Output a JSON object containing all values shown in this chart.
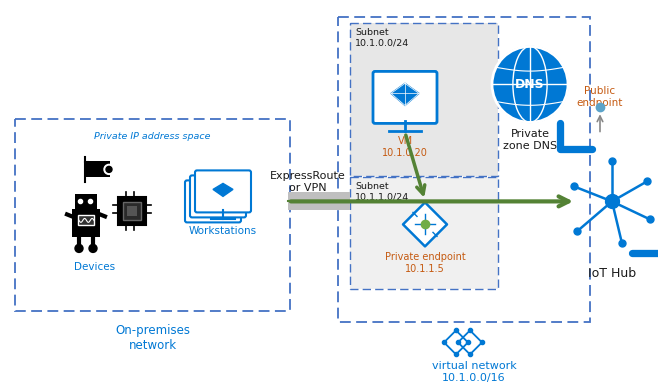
{
  "bg_color": "#ffffff",
  "blue_dashed": "#4472c4",
  "azure_blue": "#0078d4",
  "green_arrow": "#548235",
  "gray_tunnel": "#bfbfbf",
  "text_dark": "#1a1a1a",
  "text_blue": "#0078d4",
  "text_orange": "#c55a11",
  "subnet_fill": "#d0d0d0",
  "labels": {
    "private_ip": "Private IP address space",
    "devices": "Devices",
    "workstations": "Workstations",
    "expressroute": "ExpressRoute\nor VPN",
    "on_premises": "On-premises\nnetwork",
    "subnet1_label": "Subnet\n10.1.0.0/24",
    "vm_label": "VM\n10.1.0.20",
    "subnet2_label": "Subnet\n10.1.1.0/24",
    "pe_label": "Private endpoint\n10.1.1.5",
    "dns_label": "Private\nzone DNS",
    "public_endpoint": "Public\nendpoint",
    "iot_hub": "IoT Hub",
    "vnet_label": "virtual network\n10.1.0.0/16"
  }
}
